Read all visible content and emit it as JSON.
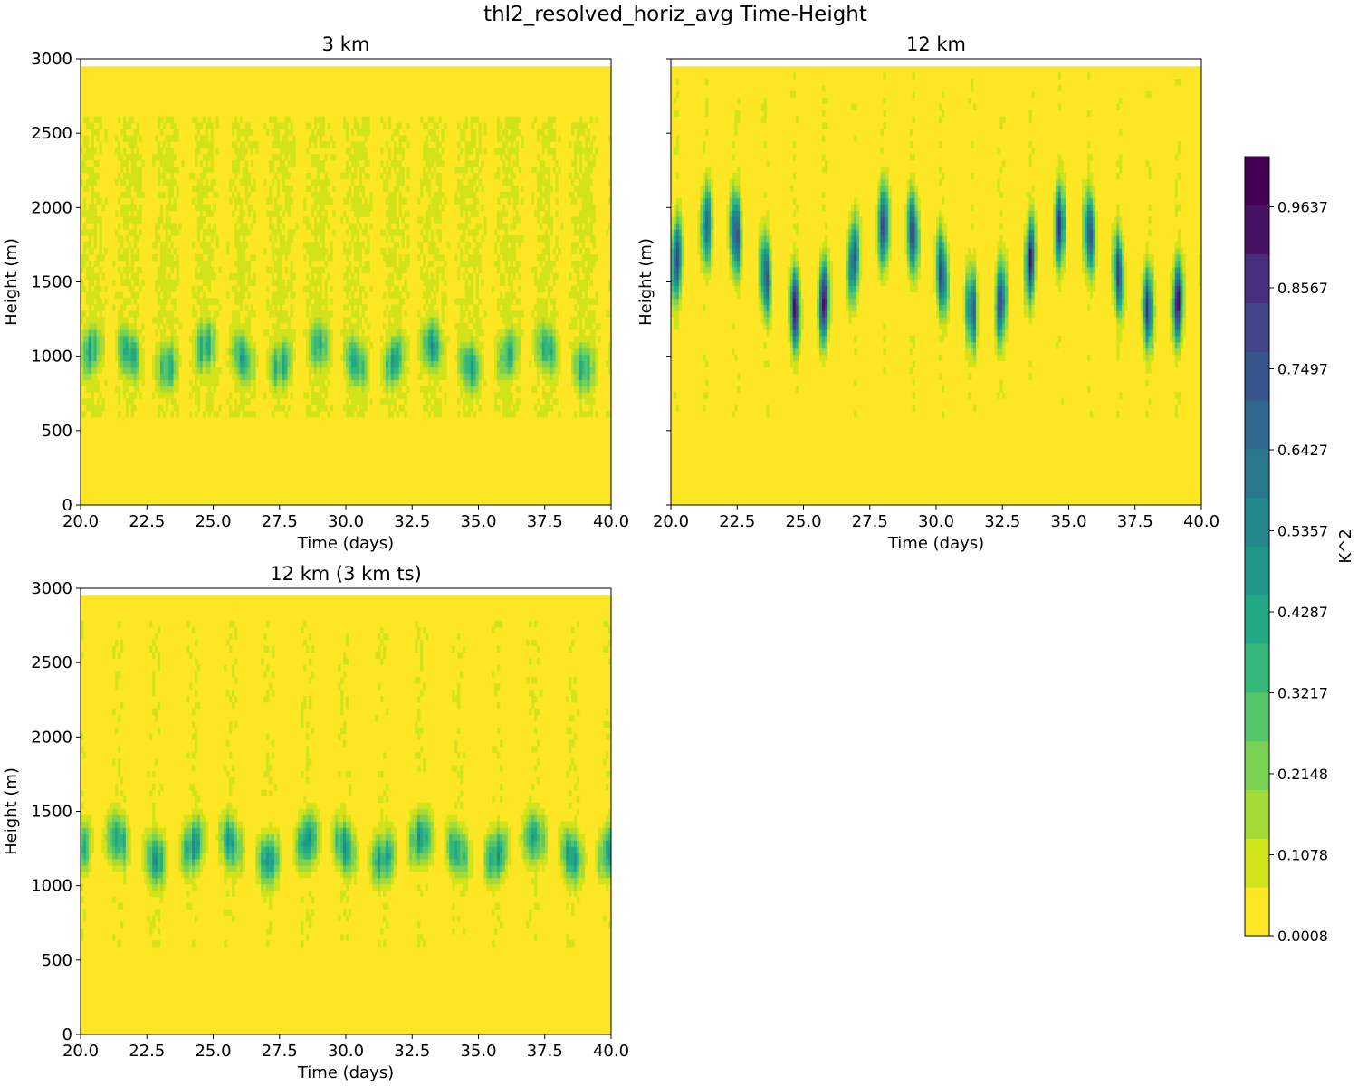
{
  "figure": {
    "title": "thl2_resolved_horiz_avg Time-Height"
  },
  "colors": {
    "viridis_levels": [
      "#fde725",
      "#d2e21b",
      "#a5db36",
      "#7ad151",
      "#54c568",
      "#35b779",
      "#22a884",
      "#1f988b",
      "#23888e",
      "#2a788e",
      "#31688e",
      "#39568c",
      "#414487",
      "#472f7d",
      "#471164",
      "#440154"
    ]
  },
  "chart_data": [
    {
      "type": "heatmap",
      "title": "3 km",
      "xlabel": "Time (days)",
      "ylabel": "Height (m)",
      "xlim": [
        20.0,
        40.0
      ],
      "ylim": [
        0,
        3000
      ],
      "xticks": [
        "20.0",
        "22.5",
        "25.0",
        "27.5",
        "30.0",
        "32.5",
        "35.0",
        "37.5",
        "40.0"
      ],
      "yticks": [
        "0",
        "500",
        "1000",
        "1500",
        "2000",
        "2500",
        "3000"
      ],
      "data_top_height": 2950,
      "features": {
        "main_band_height": 1000,
        "band_peak": 0.52,
        "upper_level_value": 0.08,
        "upper_extent": 2600
      }
    },
    {
      "type": "heatmap",
      "title": "12 km",
      "xlabel": "Time (days)",
      "ylabel": "Height (m)",
      "xlim": [
        20.0,
        40.0
      ],
      "ylim": [
        0,
        3000
      ],
      "xticks": [
        "20.0",
        "22.5",
        "25.0",
        "27.5",
        "30.0",
        "32.5",
        "35.0",
        "37.5",
        "40.0"
      ],
      "yticks": [],
      "data_top_height": 2950,
      "features": {
        "main_band_height": 1600,
        "band_peak": 0.98,
        "upper_level_value": 0.05,
        "upper_extent": 2900
      }
    },
    {
      "type": "heatmap",
      "title": "12 km (3 km ts)",
      "xlabel": "Time (days)",
      "ylabel": "Height (m)",
      "xlim": [
        20.0,
        40.0
      ],
      "ylim": [
        0,
        3000
      ],
      "xticks": [
        "20.0",
        "22.5",
        "25.0",
        "27.5",
        "30.0",
        "32.5",
        "35.0",
        "37.5",
        "40.0"
      ],
      "yticks": [
        "0",
        "500",
        "1000",
        "1500",
        "2000",
        "2500",
        "3000"
      ],
      "data_top_height": 2950,
      "features": {
        "main_band_height": 1250,
        "band_peak": 0.6,
        "upper_level_value": 0.05,
        "upper_extent": 2800
      }
    }
  ],
  "colorbar": {
    "label": "K^2",
    "range": [
      0.0008,
      1.03
    ],
    "ticks": [
      "0.0008",
      "0.1078",
      "0.2148",
      "0.3217",
      "0.4287",
      "0.5357",
      "0.6427",
      "0.7497",
      "0.8567",
      "0.9637"
    ],
    "tick_values": [
      0.0008,
      0.1078,
      0.2148,
      0.3217,
      0.4287,
      0.5357,
      0.6427,
      0.7497,
      0.8567,
      0.9637
    ]
  }
}
